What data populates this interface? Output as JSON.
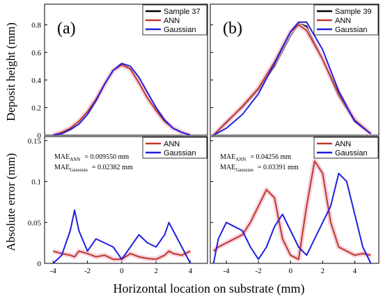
{
  "figure": {
    "xlabel": "Horizontal location on substrate (mm)",
    "top_ylabel": "Deposit height (mm)",
    "bottom_ylabel": "Absolute error (mm)"
  },
  "colors": {
    "sample": "#000000",
    "ann": "#c0392b",
    "gaussian": "#1f1fe0",
    "band": "#f4c2d4"
  },
  "chart_data": [
    {
      "id": "a-top",
      "panel_label": "(a)",
      "type": "line",
      "xlim": [
        -4.5,
        5
      ],
      "ylim": [
        0,
        0.95
      ],
      "xticks": [],
      "yticks": [
        0,
        0.2,
        0.4,
        0.6,
        0.8
      ],
      "ytick_labels": [
        "0",
        "0.2",
        "0.4",
        "0.6",
        "0.8"
      ],
      "legend": [
        "Sample 37",
        "ANN",
        "Gaussian"
      ],
      "legend_position": "top-right",
      "x": [
        -4,
        -3.5,
        -3,
        -2.5,
        -2,
        -1.5,
        -1,
        -0.5,
        0,
        0.5,
        1,
        1.5,
        2,
        2.5,
        3,
        3.5,
        4
      ],
      "series": [
        {
          "name": "Sample 37",
          "color_key": "sample",
          "values": [
            0.0,
            0.02,
            0.05,
            0.1,
            0.17,
            0.26,
            0.37,
            0.47,
            0.52,
            0.48,
            0.38,
            0.27,
            0.18,
            0.11,
            0.05,
            0.02,
            0.0
          ]
        },
        {
          "name": "ANN",
          "color_key": "ann",
          "values": [
            0.0,
            0.02,
            0.05,
            0.1,
            0.17,
            0.26,
            0.37,
            0.47,
            0.51,
            0.48,
            0.38,
            0.27,
            0.18,
            0.1,
            0.05,
            0.02,
            0.0
          ]
        },
        {
          "name": "Gaussian",
          "color_key": "gaussian",
          "values": [
            0.0,
            0.01,
            0.04,
            0.08,
            0.15,
            0.25,
            0.37,
            0.47,
            0.52,
            0.5,
            0.42,
            0.31,
            0.2,
            0.11,
            0.05,
            0.02,
            0.0
          ]
        }
      ]
    },
    {
      "id": "b-top",
      "panel_label": "(b)",
      "type": "line",
      "xlim": [
        -5,
        5.5
      ],
      "ylim": [
        0,
        0.95
      ],
      "xticks": [],
      "yticks": [
        0,
        0.2,
        0.4,
        0.6,
        0.8
      ],
      "ytick_labels": [],
      "legend": [
        "Sample 39",
        "ANN",
        "Gaussian"
      ],
      "legend_position": "top-right",
      "x": [
        -4.8,
        -4,
        -3,
        -2,
        -1,
        0,
        0.5,
        1,
        2,
        3,
        4,
        5
      ],
      "series": [
        {
          "name": "Sample 39",
          "color_key": "sample",
          "values": [
            0.0,
            0.1,
            0.2,
            0.33,
            0.5,
            0.72,
            0.81,
            0.79,
            0.55,
            0.28,
            0.1,
            0.01
          ]
        },
        {
          "name": "ANN",
          "color_key": "ann",
          "values": [
            0.0,
            0.09,
            0.21,
            0.34,
            0.53,
            0.75,
            0.8,
            0.76,
            0.55,
            0.3,
            0.11,
            0.01
          ]
        },
        {
          "name": "Gaussian",
          "color_key": "gaussian",
          "values": [
            0.0,
            0.05,
            0.15,
            0.3,
            0.52,
            0.75,
            0.82,
            0.82,
            0.62,
            0.32,
            0.1,
            0.01
          ]
        }
      ]
    },
    {
      "id": "a-bottom",
      "type": "line",
      "xlim": [
        -4.5,
        5
      ],
      "ylim": [
        0,
        0.155
      ],
      "xticks": [
        -4,
        -2,
        0,
        2,
        4
      ],
      "xtick_labels": [
        "-4",
        "-2",
        "0",
        "2",
        "4"
      ],
      "yticks": [
        0,
        0.05,
        0.1,
        0.15
      ],
      "ytick_labels": [
        "0",
        "0.05",
        "0.1",
        "0.15"
      ],
      "legend": [
        "ANN",
        "Gaussian"
      ],
      "legend_position": "top-right",
      "mae": [
        {
          "label": "MAE",
          "sub": "ANN",
          "value": "= 0.009550 mm"
        },
        {
          "label": "MAE",
          "sub": "Gaussian",
          "value": "= 0.02382 mm"
        }
      ],
      "x": [
        -4,
        -3.5,
        -3,
        -2.75,
        -2.5,
        -2,
        -1.5,
        -1,
        -0.5,
        0,
        0.5,
        1,
        1.5,
        2,
        2.5,
        2.75,
        3,
        3.5,
        4
      ],
      "series": [
        {
          "name": "ANN",
          "color_key": "ann",
          "values": [
            0.015,
            0.012,
            0.01,
            0.008,
            0.015,
            0.012,
            0.008,
            0.01,
            0.005,
            0.005,
            0.012,
            0.008,
            0.006,
            0.005,
            0.01,
            0.015,
            0.012,
            0.01,
            0.015
          ]
        },
        {
          "name": "Gaussian",
          "color_key": "gaussian",
          "values": [
            0.0,
            0.01,
            0.04,
            0.065,
            0.04,
            0.015,
            0.03,
            0.025,
            0.02,
            0.005,
            0.02,
            0.035,
            0.025,
            0.02,
            0.035,
            0.05,
            0.04,
            0.02,
            0.0
          ]
        }
      ]
    },
    {
      "id": "b-bottom",
      "type": "line",
      "xlim": [
        -5,
        5.5
      ],
      "ylim": [
        0,
        0.155
      ],
      "xticks": [
        -4,
        -2,
        0,
        2,
        4
      ],
      "xtick_labels": [
        "-4",
        "-2",
        "0",
        "2",
        "4"
      ],
      "yticks": [
        0,
        0.05,
        0.1,
        0.15
      ],
      "ytick_labels": [],
      "legend": [
        "ANN",
        "Gaussian"
      ],
      "legend_position": "top-right",
      "mae": [
        {
          "label": "MAE",
          "sub": "ANN",
          "value": "= 0.04256 mm"
        },
        {
          "label": "MAE",
          "sub": "Gaussian",
          "value": "= 0.03391 mm"
        }
      ],
      "x": [
        -4.8,
        -4.5,
        -4,
        -3.5,
        -3,
        -2.5,
        -2,
        -1.5,
        -1,
        -0.5,
        0,
        0.5,
        1,
        1.5,
        2,
        2.5,
        3,
        3.5,
        4,
        4.5,
        5
      ],
      "series": [
        {
          "name": "ANN",
          "color_key": "ann",
          "values": [
            0.015,
            0.02,
            0.025,
            0.03,
            0.035,
            0.05,
            0.07,
            0.09,
            0.08,
            0.03,
            0.01,
            0.005,
            0.07,
            0.125,
            0.11,
            0.05,
            0.02,
            0.015,
            0.01,
            0.012,
            0.01
          ]
        },
        {
          "name": "Gaussian",
          "color_key": "gaussian",
          "values": [
            0.0,
            0.03,
            0.05,
            0.045,
            0.04,
            0.02,
            0.005,
            0.02,
            0.045,
            0.06,
            0.04,
            0.02,
            0.01,
            0.03,
            0.05,
            0.07,
            0.11,
            0.1,
            0.06,
            0.02,
            0.0
          ]
        }
      ]
    }
  ]
}
